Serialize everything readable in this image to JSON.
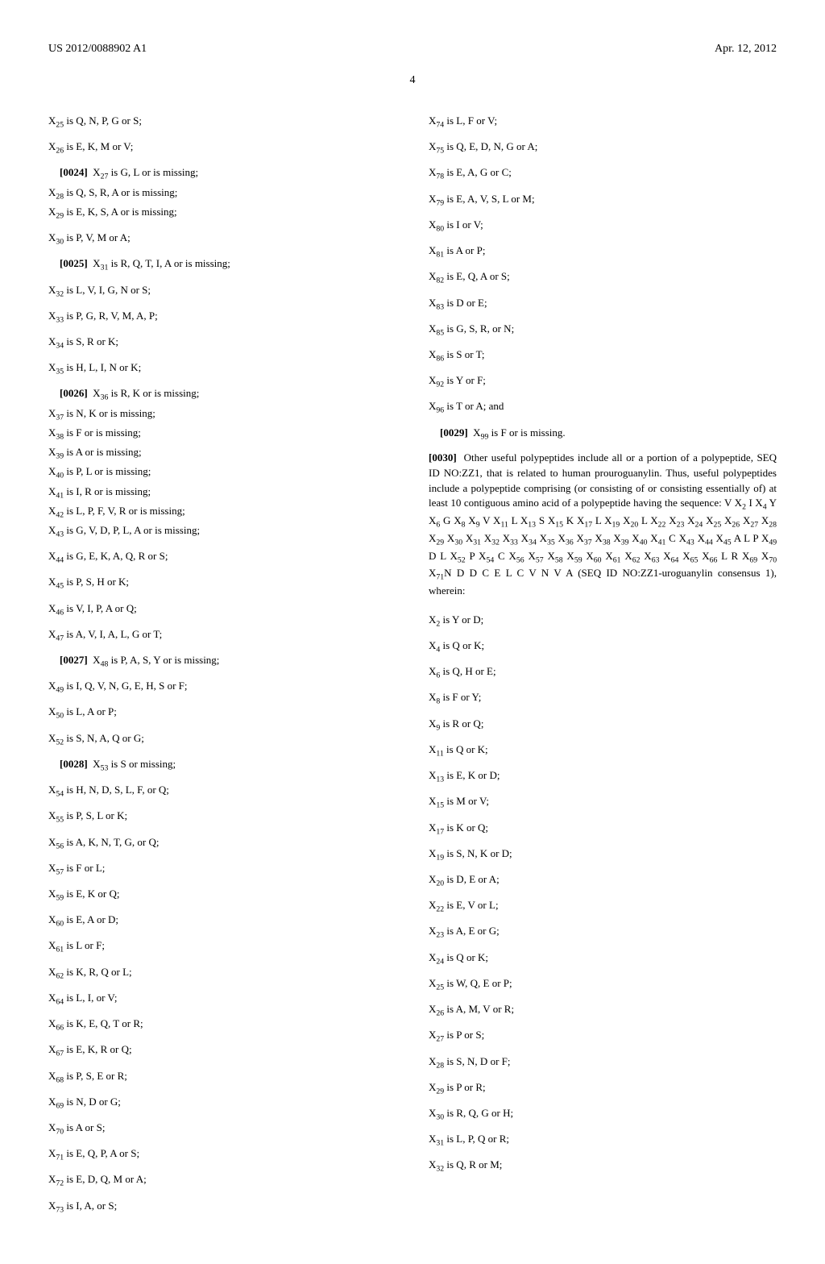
{
  "header": {
    "docnum": "US 2012/0088902 A1",
    "date": "Apr. 12, 2012"
  },
  "page": "4",
  "left": [
    {
      "x": "25",
      "t": " is Q, N, P, G or S;",
      "cls": "entry"
    },
    {
      "x": "26",
      "t": " is E, K, M or V;",
      "cls": "entry"
    },
    {
      "pnum": "[0024]",
      "x": "27",
      "t": " is G, L or is missing;",
      "cls": "entry-tight indent"
    },
    {
      "x": "28",
      "t": " is Q, S, R, A or is missing;",
      "cls": "entry-tight"
    },
    {
      "x": "29",
      "t": " is E, K, S, A or is missing;",
      "cls": "entry"
    },
    {
      "x": "30",
      "t": " is P, V, M or A;",
      "cls": "entry"
    },
    {
      "pnum": "[0025]",
      "x": "31",
      "t": " is R, Q, T, I, A or is missing;",
      "cls": "entry indent"
    },
    {
      "x": "32",
      "t": " is L, V, I, G, N or S;",
      "cls": "entry"
    },
    {
      "x": "33",
      "t": " is P, G, R, V, M, A, P;",
      "cls": "entry"
    },
    {
      "x": "34",
      "t": " is S, R or K;",
      "cls": "entry"
    },
    {
      "x": "35",
      "t": " is H, L, I, N or K;",
      "cls": "entry"
    },
    {
      "pnum": "[0026]",
      "x": "36",
      "t": " is R, K or is missing;",
      "cls": "entry-tight indent"
    },
    {
      "x": "37",
      "t": " is N, K or is missing;",
      "cls": "entry-tight"
    },
    {
      "x": "38",
      "t": " is F or is missing;",
      "cls": "entry-tight"
    },
    {
      "x": "39",
      "t": " is A or is missing;",
      "cls": "entry-tight"
    },
    {
      "x": "40",
      "t": " is P, L or is missing;",
      "cls": "entry-tight"
    },
    {
      "x": "41",
      "t": " is I, R or is missing;",
      "cls": "entry-tight"
    },
    {
      "x": "42",
      "t": " is L, P, F, V, R or is missing;",
      "cls": "entry-tight"
    },
    {
      "x": "43",
      "t": " is G, V, D, P, L, A or is missing;",
      "cls": "entry"
    },
    {
      "x": "44",
      "t": " is G, E, K, A, Q, R or S;",
      "cls": "entry"
    },
    {
      "x": "45",
      "t": " is P, S, H or K;",
      "cls": "entry"
    },
    {
      "x": "46",
      "t": " is V, I, P, A or Q;",
      "cls": "entry"
    },
    {
      "x": "47",
      "t": " is A, V, I, A, L, G or T;",
      "cls": "entry"
    },
    {
      "pnum": "[0027]",
      "x": "48",
      "t": " is P, A, S, Y or is missing;",
      "cls": "entry indent"
    },
    {
      "x": "49",
      "t": " is I, Q, V, N, G, E, H, S or F;",
      "cls": "entry"
    },
    {
      "x": "50",
      "t": " is L, A or P;",
      "cls": "entry"
    },
    {
      "x": "52",
      "t": " is S, N, A, Q or G;",
      "cls": "entry"
    },
    {
      "pnum": "[0028]",
      "x": "53",
      "t": " is S or missing;",
      "cls": "entry indent"
    },
    {
      "x": "54",
      "t": " is H, N, D, S, L, F, or Q;",
      "cls": "entry"
    },
    {
      "x": "55",
      "t": " is P, S, L or K;",
      "cls": "entry"
    },
    {
      "x": "56",
      "t": " is A, K, N, T, G, or Q;",
      "cls": "entry"
    },
    {
      "x": "57",
      "t": " is F or L;",
      "cls": "entry"
    },
    {
      "x": "59",
      "t": " is E, K or Q;",
      "cls": "entry"
    },
    {
      "x": "60",
      "t": " is E, A or D;",
      "cls": "entry"
    },
    {
      "x": "61",
      "t": " is L or F;",
      "cls": "entry"
    },
    {
      "x": "62",
      "t": " is K, R, Q or L;",
      "cls": "entry"
    },
    {
      "x": "64",
      "t": " is L, I, or V;",
      "cls": "entry"
    },
    {
      "x": "66",
      "t": " is K, E, Q, T or R;",
      "cls": "entry"
    },
    {
      "x": "67",
      "t": " is E, K, R or Q;",
      "cls": "entry"
    },
    {
      "x": "68",
      "t": " is P, S, E or R;",
      "cls": "entry"
    },
    {
      "x": "69",
      "t": " is N, D or G;",
      "cls": "entry"
    },
    {
      "x": "70",
      "t": " is A or S;",
      "cls": "entry"
    },
    {
      "x": "71",
      "t": " is E, Q, P, A or S;",
      "cls": "entry"
    },
    {
      "x": "72",
      "t": " is E, D, Q, M or A;",
      "cls": "entry"
    },
    {
      "x": "73",
      "t": " is I, A, or S;",
      "cls": "entry"
    }
  ],
  "rightTop": [
    {
      "x": "74",
      "t": " is L, F or V;",
      "cls": "entry"
    },
    {
      "x": "75",
      "t": " is Q, E, D, N, G or A;",
      "cls": "entry"
    },
    {
      "x": "78",
      "t": " is E, A, G or C;",
      "cls": "entry"
    },
    {
      "x": "79",
      "t": " is E, A, V, S, L or M;",
      "cls": "entry"
    },
    {
      "x": "80",
      "t": " is I or V;",
      "cls": "entry"
    },
    {
      "x": "81",
      "t": " is A or P;",
      "cls": "entry"
    },
    {
      "x": "82",
      "t": " is E, Q, A or S;",
      "cls": "entry"
    },
    {
      "x": "83",
      "t": " is D or E;",
      "cls": "entry"
    },
    {
      "x": "85",
      "t": " is G, S, R, or N;",
      "cls": "entry"
    },
    {
      "x": "86",
      "t": " is S or T;",
      "cls": "entry"
    },
    {
      "x": "92",
      "t": " is Y or F;",
      "cls": "entry"
    },
    {
      "x": "96",
      "t": " is T or A; and",
      "cls": "entry"
    }
  ],
  "rightMid": {
    "pnum29": "[0029]",
    "x99": "99",
    "t99": " is F or is missing.",
    "pnum30": "[0030]",
    "body1": "Other useful polypeptides include all or a portion of a polypeptide, SEQ ID NO:ZZ1, that is related to human prouroguanylin. Thus, useful polypeptides include a polypeptide comprising (or consisting of or consisting essentially of) at least 10 contiguous amino acid of a polypeptide having the sequence: V X",
    "seqTail": " (SEQ ID NO:ZZ1-uroguanylin consensus 1), wherein:"
  },
  "rightBottom": [
    {
      "x": "2",
      "t": " is Y or D;",
      "cls": "entry"
    },
    {
      "x": "4",
      "t": " is Q or K;",
      "cls": "entry"
    },
    {
      "x": "6",
      "t": " is Q, H or E;",
      "cls": "entry"
    },
    {
      "x": "8",
      "t": " is F or Y;",
      "cls": "entry"
    },
    {
      "x": "9",
      "t": " is R or Q;",
      "cls": "entry"
    },
    {
      "x": "11",
      "t": " is Q or K;",
      "cls": "entry"
    },
    {
      "x": "13",
      "t": " is E, K or D;",
      "cls": "entry"
    },
    {
      "x": "15",
      "t": " is M or V;",
      "cls": "entry"
    },
    {
      "x": "17",
      "t": " is K or Q;",
      "cls": "entry"
    },
    {
      "x": "19",
      "t": " is S, N, K or D;",
      "cls": "entry"
    },
    {
      "x": "20",
      "t": " is D, E or A;",
      "cls": "entry"
    },
    {
      "x": "22",
      "t": " is E, V or L;",
      "cls": "entry"
    },
    {
      "x": "23",
      "t": " is A, E or G;",
      "cls": "entry"
    },
    {
      "x": "24",
      "t": " is Q or K;",
      "cls": "entry"
    },
    {
      "x": "25",
      "t": " is W, Q, E or P;",
      "cls": "entry"
    },
    {
      "x": "26",
      "t": " is A, M, V or R;",
      "cls": "entry"
    },
    {
      "x": "27",
      "t": " is P or S;",
      "cls": "entry"
    },
    {
      "x": "28",
      "t": " is S, N, D or F;",
      "cls": "entry"
    },
    {
      "x": "29",
      "t": " is P or R;",
      "cls": "entry"
    },
    {
      "x": "30",
      "t": " is R, Q, G or H;",
      "cls": "entry"
    },
    {
      "x": "31",
      "t": " is L, P, Q or R;",
      "cls": "entry"
    },
    {
      "x": "32",
      "t": " is Q, R or M;",
      "cls": "entry"
    }
  ],
  "seq": {
    "parts": [
      {
        "p": "2",
        "a": " I X"
      },
      {
        "p": "4",
        "a": " Y X"
      },
      {
        "p": "6",
        "a": " G X"
      },
      {
        "p": "8",
        "a": " X"
      },
      {
        "p": "9",
        "a": " V X"
      },
      {
        "p": "11",
        "a": " L X"
      },
      {
        "p": "13",
        "a": " S X"
      },
      {
        "p": "15",
        "a": " K X"
      },
      {
        "p": "17",
        "a": " L X"
      },
      {
        "p": "19",
        "a": " X"
      },
      {
        "p": "20",
        "a": " L X"
      },
      {
        "p": "22",
        "a": " X"
      },
      {
        "p": "23",
        "a": " X"
      },
      {
        "p": "24",
        "a": " X"
      },
      {
        "p": "25",
        "a": " X"
      },
      {
        "p": "26",
        "a": " X"
      },
      {
        "p": "27",
        "a": " X"
      },
      {
        "p": "28",
        "a": " X"
      },
      {
        "p": "29",
        "a": " X"
      },
      {
        "p": "30",
        "a": " X"
      },
      {
        "p": "31",
        "a": " X"
      },
      {
        "p": "32",
        "a": " X"
      },
      {
        "p": "33",
        "a": " X"
      },
      {
        "p": "34",
        "a": " X"
      },
      {
        "p": "35",
        "a": " X"
      },
      {
        "p": "36",
        "a": " X"
      },
      {
        "p": "37",
        "a": " X"
      },
      {
        "p": "38",
        "a": " X"
      },
      {
        "p": "39",
        "a": " X"
      },
      {
        "p": "40",
        "a": " X"
      },
      {
        "p": "41",
        "a": " C X"
      },
      {
        "p": "43",
        "a": " X"
      },
      {
        "p": "44",
        "a": " X"
      },
      {
        "p": "45",
        "a": " A L P X"
      },
      {
        "p": "49",
        "a": " D L X"
      },
      {
        "p": "52",
        "a": " P X"
      },
      {
        "p": "54",
        "a": " C X"
      },
      {
        "p": "56",
        "a": " X"
      },
      {
        "p": "57",
        "a": " X"
      },
      {
        "p": "58",
        "a": " X"
      },
      {
        "p": "59",
        "a": " X"
      },
      {
        "p": "60",
        "a": " X"
      },
      {
        "p": "61",
        "a": " X"
      },
      {
        "p": "62",
        "a": " X"
      },
      {
        "p": "63",
        "a": " X"
      },
      {
        "p": "64",
        "a": " X"
      },
      {
        "p": "65",
        "a": " X"
      },
      {
        "p": "66",
        "a": " L R X"
      },
      {
        "p": "69",
        "a": " X"
      },
      {
        "p": "70",
        "a": " X"
      },
      {
        "p": "71",
        "a": "N D D C E L C V N V A"
      }
    ]
  }
}
